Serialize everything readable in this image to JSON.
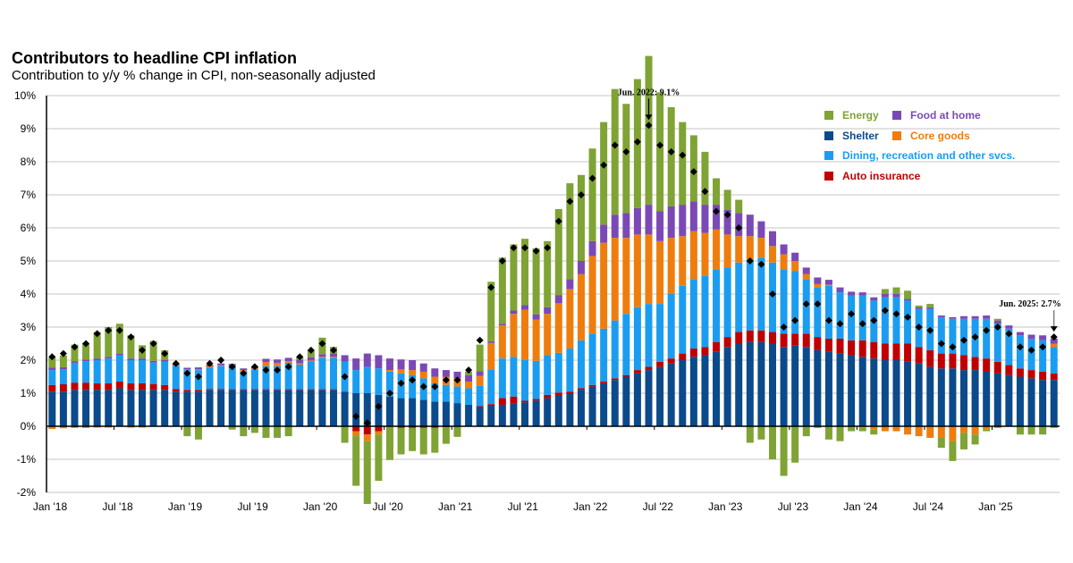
{
  "chart_data": {
    "type": "bar",
    "stacked": true,
    "title": "Contributors to headline CPI inflation",
    "subtitle": "Contribution to y/y % change in CPI, non-seasonally adjusted",
    "ylim": [
      -2,
      10
    ],
    "yticks": [
      "-2%",
      "-1%",
      "0%",
      "1%",
      "2%",
      "3%",
      "4%",
      "5%",
      "6%",
      "7%",
      "8%",
      "9%",
      "10%"
    ],
    "ytick_values": [
      -2,
      -1,
      0,
      1,
      2,
      3,
      4,
      5,
      6,
      7,
      8,
      9,
      10
    ],
    "xtick_labels": [
      "Jan '18",
      "Jul '18",
      "Jan '19",
      "Jul '19",
      "Jan '20",
      "Jul '20",
      "Jan '21",
      "Jul '21",
      "Jan '22",
      "Jul '22",
      "Jan '23",
      "Jul '23",
      "Jan '24",
      "Jul '24",
      "Jan '25"
    ],
    "xtick_every_months": 6,
    "start_month": "2018-01",
    "end_month": "2025-06",
    "grid": "horizontal",
    "legend_placement": "top-right",
    "legend": [
      {
        "key": "energy",
        "label": "Energy"
      },
      {
        "key": "food",
        "label": "Food at home"
      },
      {
        "key": "shelter",
        "label": "Shelter"
      },
      {
        "key": "core_goods",
        "label": "Core goods"
      },
      {
        "key": "dining",
        "label": "Dining, recreation and other svcs."
      },
      {
        "key": "auto",
        "label": "Auto insurance"
      }
    ],
    "colors": {
      "shelter": "#0b4a8b",
      "auto": "#c00000",
      "dining": "#1a9df0",
      "core_goods": "#ee7d0e",
      "food": "#7b49b6",
      "energy": "#7fa334",
      "headline": "#000000"
    },
    "annotations": [
      {
        "label": "Jun. 2022: 9.1%",
        "month_index": 53,
        "value": 9.1
      },
      {
        "label": "Jun. 2025: 2.7%",
        "month_index": 89,
        "value": 2.7
      }
    ],
    "series": {
      "shelter": [
        1.05,
        1.05,
        1.1,
        1.1,
        1.1,
        1.1,
        1.15,
        1.1,
        1.1,
        1.1,
        1.1,
        1.05,
        1.05,
        1.05,
        1.1,
        1.1,
        1.1,
        1.1,
        1.1,
        1.1,
        1.1,
        1.1,
        1.1,
        1.1,
        1.1,
        1.1,
        1.05,
        1.0,
        1.0,
        0.95,
        0.9,
        0.85,
        0.85,
        0.8,
        0.75,
        0.75,
        0.7,
        0.65,
        0.6,
        0.62,
        0.65,
        0.7,
        0.72,
        0.78,
        0.85,
        0.92,
        1.0,
        1.1,
        1.2,
        1.3,
        1.4,
        1.5,
        1.6,
        1.7,
        1.8,
        1.9,
        2.0,
        2.1,
        2.15,
        2.25,
        2.4,
        2.5,
        2.55,
        2.55,
        2.5,
        2.4,
        2.45,
        2.4,
        2.3,
        2.25,
        2.2,
        2.15,
        2.1,
        2.05,
        2.0,
        2.0,
        1.95,
        1.9,
        1.8,
        1.75,
        1.75,
        1.7,
        1.7,
        1.65,
        1.6,
        1.55,
        1.5,
        1.45,
        1.4,
        1.4
      ],
      "auto": [
        0.2,
        0.22,
        0.22,
        0.22,
        0.2,
        0.2,
        0.2,
        0.2,
        0.2,
        0.18,
        0.15,
        0.08,
        0.05,
        0.05,
        0.03,
        0.03,
        0.02,
        0.02,
        0.02,
        0.02,
        0.02,
        0.02,
        0.02,
        0.02,
        0.02,
        0.02,
        0,
        -0.15,
        -0.25,
        -0.15,
        -0.02,
        -0.05,
        -0.05,
        -0.05,
        -0.05,
        -0.03,
        -0.02,
        0,
        0.02,
        0.05,
        0.2,
        0.2,
        0.05,
        0.05,
        0.1,
        0.1,
        0.05,
        0.05,
        0.05,
        0.05,
        0.05,
        0.05,
        0.1,
        0.1,
        0.15,
        0.15,
        0.2,
        0.25,
        0.25,
        0.3,
        0.3,
        0.35,
        0.35,
        0.35,
        0.35,
        0.4,
        0.35,
        0.4,
        0.4,
        0.4,
        0.45,
        0.45,
        0.5,
        0.5,
        0.5,
        0.5,
        0.55,
        0.5,
        0.5,
        0.45,
        0.45,
        0.45,
        0.4,
        0.4,
        0.35,
        0.3,
        0.25,
        0.25,
        0.25,
        0.2
      ],
      "dining": [
        0.45,
        0.45,
        0.6,
        0.65,
        0.7,
        0.75,
        0.8,
        0.7,
        0.7,
        0.65,
        0.7,
        0.7,
        0.6,
        0.6,
        0.65,
        0.7,
        0.7,
        0.55,
        0.6,
        0.7,
        0.7,
        0.8,
        0.75,
        0.85,
        0.95,
        0.95,
        0.9,
        0.7,
        0.8,
        0.8,
        0.75,
        0.75,
        0.7,
        0.65,
        0.55,
        0.5,
        0.5,
        0.5,
        0.6,
        1.05,
        1.2,
        1.2,
        1.25,
        1.15,
        1.2,
        1.2,
        1.3,
        1.45,
        1.55,
        1.6,
        1.75,
        1.85,
        1.9,
        1.9,
        1.75,
        1.95,
        2.05,
        2.1,
        2.15,
        2.2,
        2.1,
        2.1,
        2.15,
        2.2,
        2.1,
        1.95,
        1.9,
        1.65,
        1.5,
        1.6,
        1.4,
        1.35,
        1.35,
        1.25,
        1.4,
        1.4,
        1.3,
        1.15,
        1.25,
        1.1,
        1.05,
        1.1,
        1.15,
        1.2,
        1.15,
        1.1,
        1.0,
        0.95,
        0.95,
        0.8
      ],
      "core_goods": [
        -0.08,
        -0.06,
        -0.05,
        -0.05,
        -0.04,
        -0.04,
        0,
        -0.04,
        -0.04,
        0,
        0,
        0.02,
        0.02,
        0.03,
        0.03,
        0.02,
        0.02,
        0.03,
        0.03,
        0.12,
        0.1,
        0.05,
        0.03,
        0.02,
        0.03,
        0.03,
        0,
        -0.15,
        -0.2,
        -0.1,
        0.05,
        0.12,
        0.15,
        0.2,
        0.2,
        0.25,
        0.25,
        0.2,
        0.3,
        0.8,
        1.0,
        1.3,
        1.5,
        1.25,
        1.25,
        1.5,
        1.8,
        2.0,
        2.35,
        2.6,
        2.5,
        2.3,
        2.2,
        2.1,
        1.9,
        1.7,
        1.5,
        1.45,
        1.3,
        1.2,
        1.0,
        0.8,
        0.7,
        0.6,
        0.5,
        0.45,
        0.3,
        0.15,
        0.1,
        0.03,
        0,
        0,
        -0.05,
        -0.1,
        -0.15,
        -0.15,
        -0.25,
        -0.3,
        -0.35,
        -0.35,
        -0.45,
        -0.2,
        -0.25,
        -0.1,
        -0.05,
        0,
        0,
        0,
        0,
        0.1
      ],
      "food": [
        0.08,
        0.07,
        0.05,
        0.05,
        0.05,
        0.05,
        0.05,
        0.05,
        0.05,
        0.05,
        0.05,
        0.05,
        0.05,
        0.05,
        0.05,
        0.05,
        0.05,
        0.05,
        0.06,
        0.1,
        0.1,
        0.1,
        0.1,
        0.1,
        0.08,
        0.1,
        0.2,
        0.35,
        0.4,
        0.4,
        0.35,
        0.3,
        0.3,
        0.25,
        0.25,
        0.2,
        0.2,
        0.2,
        0.15,
        0.05,
        0.05,
        0.1,
        0.15,
        0.15,
        0.2,
        0.25,
        0.3,
        0.4,
        0.45,
        0.55,
        0.7,
        0.75,
        0.8,
        0.9,
        0.9,
        0.95,
        0.95,
        0.9,
        0.85,
        0.75,
        0.75,
        0.7,
        0.65,
        0.5,
        0.45,
        0.3,
        0.25,
        0.2,
        0.2,
        0.15,
        0.15,
        0.12,
        0.1,
        0.1,
        0.1,
        0.1,
        0.05,
        0.05,
        0.05,
        0.05,
        0.05,
        0.08,
        0.08,
        0.1,
        0.1,
        0.1,
        0.1,
        0.12,
        0.15,
        0.15
      ],
      "energy": [
        0.3,
        0.35,
        0.5,
        0.5,
        0.8,
        0.9,
        0.9,
        0.7,
        0.4,
        0.6,
        0.3,
        0,
        -0.3,
        -0.4,
        0,
        0,
        -0.1,
        -0.3,
        -0.2,
        -0.35,
        -0.35,
        -0.3,
        0.1,
        0.2,
        0.5,
        0.2,
        -0.5,
        -1.5,
        -1.9,
        -1.4,
        -1.0,
        -0.8,
        -0.7,
        -0.8,
        -0.75,
        -0.5,
        -0.3,
        0.1,
        0.8,
        1.8,
        2.0,
        2.0,
        2.0,
        2.0,
        2.0,
        2.6,
        2.9,
        2.6,
        2.8,
        3.1,
        3.8,
        3.3,
        3.9,
        4.5,
        3.6,
        3.0,
        2.5,
        2.0,
        1.6,
        0.8,
        0.6,
        0.4,
        -0.5,
        -0.4,
        -1.0,
        -1.5,
        -1.1,
        -0.3,
        -0.05,
        -0.4,
        -0.45,
        -0.15,
        -0.1,
        -0.15,
        0.15,
        0.2,
        0.25,
        0.05,
        0.1,
        -0.3,
        -0.6,
        -0.5,
        -0.3,
        -0.05,
        0.05,
        0,
        -0.25,
        -0.25,
        -0.25,
        -0.05
      ],
      "headline": [
        2.1,
        2.2,
        2.4,
        2.5,
        2.8,
        2.9,
        2.9,
        2.7,
        2.3,
        2.5,
        2.2,
        1.9,
        1.6,
        1.5,
        1.9,
        2.0,
        1.8,
        1.6,
        1.8,
        1.7,
        1.7,
        1.8,
        2.1,
        2.3,
        2.5,
        2.3,
        1.5,
        0.3,
        0.1,
        0.6,
        1.0,
        1.3,
        1.4,
        1.2,
        1.2,
        1.4,
        1.4,
        1.7,
        2.6,
        4.2,
        5.0,
        5.4,
        5.4,
        5.3,
        5.4,
        6.2,
        6.8,
        7.0,
        7.5,
        7.9,
        8.5,
        8.3,
        8.6,
        9.1,
        8.5,
        8.3,
        8.2,
        7.7,
        7.1,
        6.5,
        6.4,
        6.0,
        5.0,
        4.9,
        4.0,
        3.0,
        3.2,
        3.7,
        3.7,
        3.2,
        3.1,
        3.4,
        3.1,
        3.2,
        3.5,
        3.4,
        3.3,
        3.0,
        2.9,
        2.5,
        2.4,
        2.6,
        2.7,
        2.9,
        3.0,
        2.8,
        2.4,
        2.3,
        2.4,
        2.7
      ]
    }
  }
}
